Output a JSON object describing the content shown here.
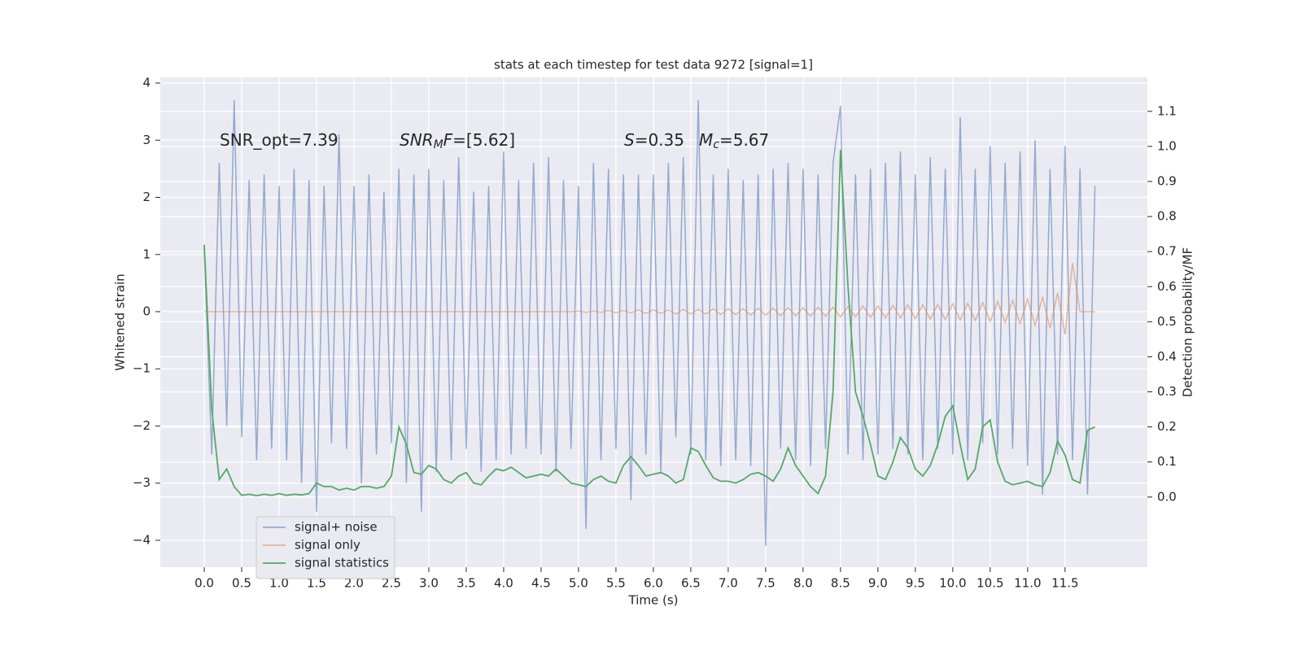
{
  "chart_data": {
    "type": "line",
    "title": "stats at each timestep for test data 9272 [signal=1]",
    "xlabel": "Time (s)",
    "ylabel": "Whitened strain",
    "y2label": "Detection probability/MF",
    "annotations": [
      [
        {
          "text": "SNR_opt=7.39",
          "style": "normal"
        }
      ],
      [
        {
          "text": "SNR",
          "style": "italic"
        },
        {
          "text": "M",
          "style": "sub"
        },
        {
          "text": "F",
          "style": "italic"
        },
        {
          "text": "=[5.62]",
          "style": "normal"
        }
      ],
      [
        {
          "text": "S",
          "style": "italic"
        },
        {
          "text": "=0.35",
          "style": "normal"
        }
      ],
      [
        {
          "text": "M",
          "style": "italic"
        },
        {
          "text": "c",
          "style": "sub"
        },
        {
          "text": "=5.67",
          "style": "normal"
        }
      ]
    ],
    "xlim": [
      -0.587,
      12.6
    ],
    "ylim": [
      -4.47,
      4.1
    ],
    "y2lim": [
      -0.2,
      1.197
    ],
    "xticks": [
      {
        "value": 0,
        "label": "0.0"
      },
      0.5,
      {
        "value": 1,
        "label": "1.0"
      },
      1.5,
      {
        "value": 2,
        "label": "2.0"
      },
      2.5,
      {
        "value": 3,
        "label": "3.0"
      },
      3.5,
      {
        "value": 4,
        "label": "4.0"
      },
      4.5,
      {
        "value": 5,
        "label": "5.0"
      },
      5.5,
      {
        "value": 6,
        "label": "6.0"
      },
      6.5,
      {
        "value": 7,
        "label": "7.0"
      },
      7.5,
      {
        "value": 8,
        "label": "8.0"
      },
      8.5,
      {
        "value": 9,
        "label": "9.0"
      },
      9.5,
      {
        "value": 10,
        "label": "10.0"
      },
      10.5,
      {
        "value": 11,
        "label": "11.0"
      },
      11.5
    ],
    "yticks": [
      {
        "value": -4,
        "label": "−4"
      },
      {
        "value": -3,
        "label": "−3"
      },
      {
        "value": -2,
        "label": "−2"
      },
      {
        "value": -1,
        "label": "−1"
      },
      0,
      1,
      2,
      3,
      4
    ],
    "y2ticks": [
      {
        "value": 0,
        "label": "0.0"
      },
      0.1,
      0.2,
      0.3,
      0.4,
      0.5,
      0.6,
      0.7,
      0.8,
      0.9,
      {
        "value": 1,
        "label": "1.0"
      },
      1.1
    ],
    "grid": true,
    "legend": "lower left",
    "x": [
      0.0,
      0.1,
      0.2,
      0.3,
      0.4,
      0.5,
      0.6,
      0.7,
      0.8,
      0.9,
      1.0,
      1.1,
      1.2,
      1.3,
      1.4,
      1.5,
      1.6,
      1.7,
      1.8,
      1.9,
      2.0,
      2.1,
      2.2,
      2.3,
      2.4,
      2.5,
      2.6,
      2.7,
      2.8,
      2.9,
      3.0,
      3.1,
      3.2,
      3.3,
      3.4,
      3.5,
      3.6,
      3.7,
      3.8,
      3.9,
      4.0,
      4.1,
      4.2,
      4.3,
      4.4,
      4.5,
      4.6,
      4.7,
      4.8,
      4.9,
      5.0,
      5.1,
      5.2,
      5.3,
      5.4,
      5.5,
      5.6,
      5.7,
      5.8,
      5.9,
      6.0,
      6.1,
      6.2,
      6.3,
      6.4,
      6.5,
      6.6,
      6.7,
      6.8,
      6.9,
      7.0,
      7.1,
      7.2,
      7.3,
      7.4,
      7.5,
      7.6,
      7.7,
      7.8,
      7.9,
      8.0,
      8.1,
      8.2,
      8.3,
      8.4,
      8.5,
      8.6,
      8.7,
      8.8,
      8.9,
      9.0,
      9.1,
      9.2,
      9.3,
      9.4,
      9.5,
      9.6,
      9.7,
      9.8,
      9.9,
      10.0,
      10.1,
      10.2,
      10.3,
      10.4,
      10.5,
      10.6,
      10.7,
      10.8,
      10.9,
      11.0,
      11.1,
      11.2,
      11.3,
      11.4,
      11.5,
      11.6,
      11.7,
      11.8,
      11.9
    ],
    "series": [
      {
        "name": "signal+ noise",
        "color": "#4c72b0",
        "values": [
          1.1,
          -2.5,
          2.6,
          -2.0,
          3.7,
          -2.2,
          2.3,
          -2.6,
          2.4,
          -2.4,
          2.2,
          -2.6,
          2.5,
          -3.0,
          2.3,
          -3.5,
          2.2,
          -2.3,
          3.1,
          -2.4,
          2.2,
          -3.0,
          2.4,
          -2.5,
          2.1,
          -2.3,
          2.5,
          -3.0,
          2.4,
          -3.5,
          2.5,
          -2.8,
          2.3,
          -2.6,
          2.7,
          -2.4,
          2.1,
          -2.8,
          2.2,
          -2.6,
          2.8,
          -2.5,
          2.3,
          -2.4,
          2.6,
          -2.5,
          2.7,
          -2.8,
          2.3,
          -2.4,
          2.2,
          -3.8,
          2.6,
          -2.6,
          2.5,
          -2.4,
          2.4,
          -3.3,
          2.4,
          -2.5,
          2.4,
          -2.8,
          2.6,
          -2.2,
          2.7,
          -2.5,
          3.7,
          -2.6,
          2.4,
          -2.7,
          2.5,
          -2.6,
          2.3,
          -2.7,
          2.4,
          -4.1,
          2.5,
          -2.4,
          2.6,
          -2.6,
          2.5,
          -2.7,
          2.4,
          -2.4,
          2.6,
          3.6,
          -2.5,
          2.4,
          -2.6,
          2.5,
          -2.5,
          2.6,
          -2.4,
          2.8,
          -2.5,
          2.4,
          -2.6,
          2.7,
          -2.4,
          2.5,
          -2.5,
          3.4,
          -2.6,
          2.5,
          -2.3,
          2.9,
          -2.5,
          2.6,
          -2.4,
          2.8,
          -2.7,
          3.0,
          -3.2,
          2.5,
          -2.5,
          2.9,
          -2.6,
          2.5,
          -3.2,
          2.2
        ]
      },
      {
        "name": "signal only",
        "color": "#dd8452",
        "values": [
          0,
          0,
          0,
          0,
          0,
          0,
          0,
          0,
          0,
          0,
          0,
          0,
          0,
          0,
          0,
          0,
          0,
          0,
          0,
          0,
          0,
          0,
          0,
          0,
          0,
          0,
          0,
          0,
          0,
          0,
          0,
          0,
          0,
          0,
          0,
          0,
          0,
          0,
          0,
          0,
          0,
          0,
          0,
          0,
          0,
          0,
          0,
          0,
          0,
          0,
          0.01,
          -0.01,
          0.01,
          -0.01,
          0.02,
          -0.02,
          0.02,
          -0.02,
          0.03,
          -0.03,
          0.03,
          -0.03,
          0.03,
          -0.04,
          0.04,
          -0.04,
          0.04,
          -0.04,
          0.05,
          -0.05,
          0.05,
          -0.05,
          0.05,
          -0.06,
          0.06,
          -0.06,
          0.06,
          -0.07,
          0.07,
          -0.07,
          0.07,
          -0.08,
          0.08,
          -0.08,
          0.08,
          -0.09,
          0.09,
          -0.09,
          0.1,
          -0.1,
          0.1,
          -0.11,
          0.11,
          -0.11,
          0.12,
          -0.12,
          0.12,
          -0.13,
          0.13,
          -0.14,
          0.14,
          -0.15,
          0.15,
          -0.16,
          0.16,
          -0.17,
          0.18,
          -0.19,
          0.2,
          -0.21,
          0.22,
          -0.24,
          0.26,
          -0.29,
          0.33,
          -0.4,
          0.85,
          0,
          0,
          0
        ]
      },
      {
        "name": "signal statistics",
        "color": "#55a868",
        "axis": "y2",
        "values": [
          0.72,
          0.25,
          0.05,
          0.08,
          0.03,
          0.005,
          0.008,
          0.004,
          0.008,
          0.005,
          0.01,
          0.005,
          0.008,
          0.006,
          0.01,
          0.04,
          0.03,
          0.03,
          0.02,
          0.025,
          0.02,
          0.03,
          0.03,
          0.025,
          0.03,
          0.06,
          0.2,
          0.15,
          0.07,
          0.065,
          0.09,
          0.08,
          0.05,
          0.04,
          0.06,
          0.07,
          0.04,
          0.035,
          0.06,
          0.08,
          0.075,
          0.085,
          0.07,
          0.055,
          0.06,
          0.065,
          0.06,
          0.08,
          0.06,
          0.04,
          0.035,
          0.03,
          0.05,
          0.06,
          0.045,
          0.04,
          0.09,
          0.115,
          0.09,
          0.06,
          0.065,
          0.07,
          0.06,
          0.04,
          0.05,
          0.14,
          0.13,
          0.09,
          0.055,
          0.045,
          0.045,
          0.04,
          0.05,
          0.065,
          0.07,
          0.06,
          0.045,
          0.08,
          0.14,
          0.09,
          0.06,
          0.03,
          0.01,
          0.06,
          0.3,
          0.99,
          0.6,
          0.3,
          0.23,
          0.15,
          0.06,
          0.05,
          0.1,
          0.17,
          0.14,
          0.08,
          0.06,
          0.09,
          0.15,
          0.23,
          0.26,
          0.15,
          0.05,
          0.08,
          0.2,
          0.22,
          0.1,
          0.045,
          0.035,
          0.04,
          0.045,
          0.035,
          0.03,
          0.07,
          0.16,
          0.12,
          0.05,
          0.04,
          0.19,
          0.2
        ]
      }
    ]
  }
}
